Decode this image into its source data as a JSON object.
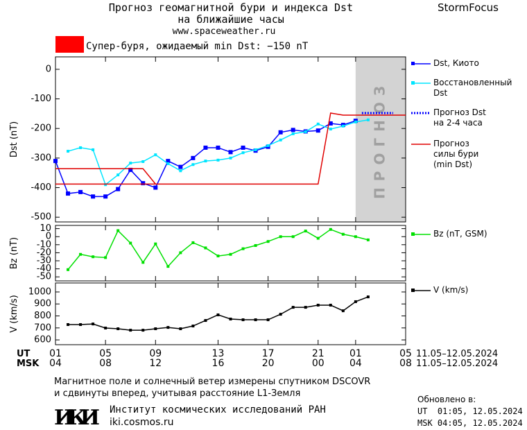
{
  "header": {
    "title_lines": [
      "Прогноз геомагнитной бури и индекса Dst",
      "на ближайшие часы"
    ],
    "site": "www.spaceweather.ru",
    "brand": "StormFocus"
  },
  "chart_data": [
    {
      "type": "line",
      "y_label": "Dst (nT)",
      "annotation": {
        "text": "Супер-буря, ожидаемый min Dst: −150 nT",
        "color": "#ff0000"
      },
      "forecast_band": {
        "xlim": [
          24,
          28
        ],
        "label": "ПРОГНОЗ",
        "color": "#d3d3d3"
      },
      "xlim": [
        0,
        28
      ],
      "ylim": [
        -516,
        42
      ],
      "yticks": [
        0,
        -100,
        -200,
        -300,
        -400,
        -500
      ],
      "series": [
        {
          "name": "Dst, Киото",
          "color": "#0000ff",
          "line_style": "solid",
          "marker": "square",
          "x": [
            0,
            1,
            2,
            3,
            4,
            5,
            6,
            7,
            8,
            9,
            10,
            11,
            12,
            13,
            14,
            15,
            16,
            17,
            18,
            19,
            20,
            21,
            22,
            23,
            24
          ],
          "values": [
            -310,
            -420,
            -415,
            -430,
            -430,
            -405,
            -340,
            -385,
            -400,
            -310,
            -330,
            -300,
            -265,
            -265,
            -280,
            -265,
            -275,
            -262,
            -213,
            -205,
            -210,
            -207,
            -183,
            -188,
            -174
          ]
        },
        {
          "name": "Восстановленный\nDst",
          "color": "#00e5ff",
          "line_style": "solid",
          "marker": "square",
          "x": [
            0,
            1,
            2,
            3,
            4,
            5,
            6,
            7,
            8,
            9,
            10,
            11,
            12,
            13,
            14,
            15,
            16,
            17,
            18,
            19,
            20,
            21,
            22,
            23,
            24,
            25
          ],
          "values": [
            null,
            -277,
            -265,
            -272,
            -390,
            -357,
            -317,
            -312,
            -289,
            -319,
            -343,
            -322,
            -310,
            -307,
            -300,
            -282,
            -272,
            -258,
            -239,
            -218,
            -211,
            -185,
            -202,
            -192,
            -178,
            -171
          ]
        },
        {
          "name": "Прогноз Dst\nна 2-4 часа",
          "color": "#0000ff",
          "line_style": "dotted",
          "marker": "none",
          "x": [
            24.5,
            27
          ],
          "values": [
            -148,
            -148
          ]
        },
        {
          "name": "Прогноз\nсилы бури\n(min Dst)",
          "color": "#e00000",
          "line_style": "solid",
          "marker": "none",
          "x": [
            0,
            7,
            8,
            8,
            0,
            21,
            22,
            23,
            28
          ],
          "values": [
            -336,
            -336,
            -388,
            null,
            -388,
            -388,
            -148,
            -155,
            -155
          ]
        }
      ]
    },
    {
      "type": "line",
      "y_label": "Bz (nT)",
      "xlim": [
        0,
        28
      ],
      "ylim": [
        -55,
        14
      ],
      "yticks": [
        10,
        0,
        -10,
        -20,
        -30,
        -40,
        -50
      ],
      "series": [
        {
          "name": "Bz (nT, GSM)",
          "color": "#00e000",
          "line_style": "solid",
          "marker": "square",
          "x": [
            1,
            2,
            3,
            4,
            5,
            6,
            7,
            8,
            9,
            10,
            11,
            12,
            13,
            14,
            15,
            16,
            17,
            18,
            19,
            20,
            21,
            22,
            23,
            24,
            25
          ],
          "values": [
            -41,
            -22,
            -25,
            -26,
            7.5,
            -8,
            -32,
            -9,
            -37,
            -20,
            -7.5,
            -14,
            -24,
            -22,
            -15,
            -11,
            -6,
            0,
            0,
            7,
            -2,
            9,
            3,
            0,
            -4
          ]
        }
      ]
    },
    {
      "type": "line",
      "y_label": "V (km/s)",
      "xlim": [
        0,
        28
      ],
      "ylim": [
        560,
        1075
      ],
      "yticks": [
        600,
        700,
        800,
        900,
        1000
      ],
      "xticks": [
        {
          "value": 0,
          "label": "01"
        },
        {
          "value": 4,
          "label": "05"
        },
        {
          "value": 8,
          "label": "09"
        },
        13,
        17,
        21,
        {
          "value": 24,
          "label": "01"
        },
        {
          "value": 28,
          "label": "05"
        }
      ],
      "x_row_labels": [
        "UT",
        "MSK"
      ],
      "xtick_labels_msk": [
        "04",
        "08",
        "12",
        "16",
        "20",
        "00",
        "04",
        "08"
      ],
      "date_range_ut": "11.05–12.05.2024",
      "date_range_msk": "11.05–12.05.2024",
      "series": [
        {
          "name": "V (km/s)",
          "color": "#000000",
          "line_style": "solid",
          "marker": "square",
          "x": [
            1,
            2,
            3,
            4,
            5,
            6,
            7,
            8,
            9,
            10,
            11,
            12,
            13,
            14,
            15,
            16,
            17,
            18,
            19,
            20,
            21,
            22,
            23,
            24,
            25
          ],
          "values": [
            728,
            728,
            733,
            699,
            693,
            681,
            681,
            693,
            704,
            693,
            716,
            762,
            809,
            774,
            768,
            768,
            768,
            814,
            872,
            872,
            890,
            890,
            843,
            919,
            959
          ]
        }
      ]
    }
  ],
  "footer": {
    "note_lines": [
      "Магнитное поле и солнечный ветер измерены спутником DSCOVR",
      "и сдвинуты вперед, учитывая расстояние L1-Земля"
    ],
    "logo": "ИКИ",
    "institute": "Институт космических исследований РАН",
    "institute_site": "iki.cosmos.ru",
    "updated_label": "Обновлено в:",
    "updated_ut": "UT  01:05, 12.05.2024",
    "updated_msk": "MSK 04:05, 12.05.2024"
  }
}
